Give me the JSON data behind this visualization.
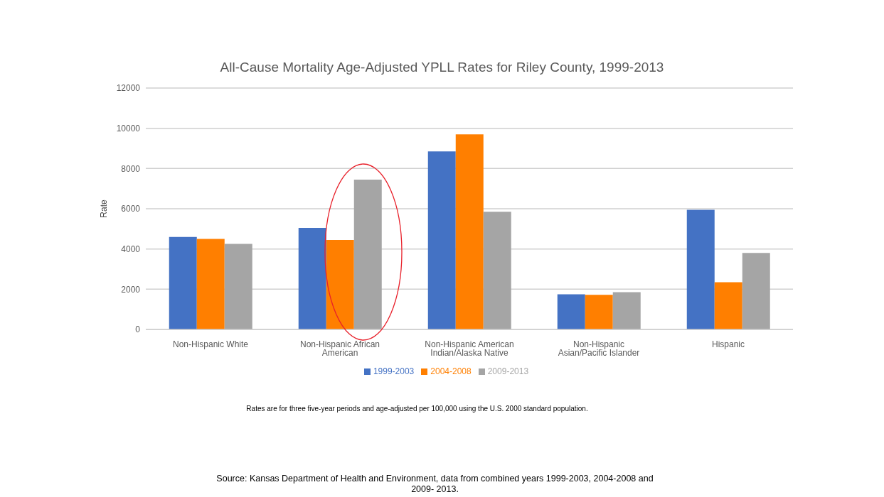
{
  "chart_data": {
    "type": "bar",
    "title": "All-Cause Mortality Age-Adjusted YPLL Rates for Riley County, 1999-2013",
    "ylabel": "Rate",
    "categories": [
      "Non-Hispanic White",
      "Non-Hispanic African American",
      "Non-Hispanic American Indian/Alaska Native",
      "Non-Hispanic Asian/Pacific Islander",
      "Hispanic"
    ],
    "series": [
      {
        "name": "1999-2003",
        "color": "#4472c4",
        "values": [
          4600,
          5050,
          8850,
          1750,
          5950
        ]
      },
      {
        "name": "2004-2008",
        "color": "#ff7f00",
        "values": [
          4500,
          4450,
          9700,
          1720,
          2350
        ]
      },
      {
        "name": "2009-2013",
        "color": "#a5a5a5",
        "values": [
          4250,
          7450,
          5850,
          1850,
          3800
        ]
      }
    ],
    "ylim": [
      0,
      12000
    ],
    "yticks": [
      0,
      2000,
      4000,
      6000,
      8000,
      10000,
      12000
    ],
    "grid": "y",
    "legend": "bottom",
    "annotations": [
      "Rates are for three five-year periods and age-adjusted per 100,000 using the U.S. 2000 standard population.",
      "Source: Kansas Department of Health and Environment, data from combined years 1999-2003, 2004-2008 and 2009- 2013."
    ]
  }
}
